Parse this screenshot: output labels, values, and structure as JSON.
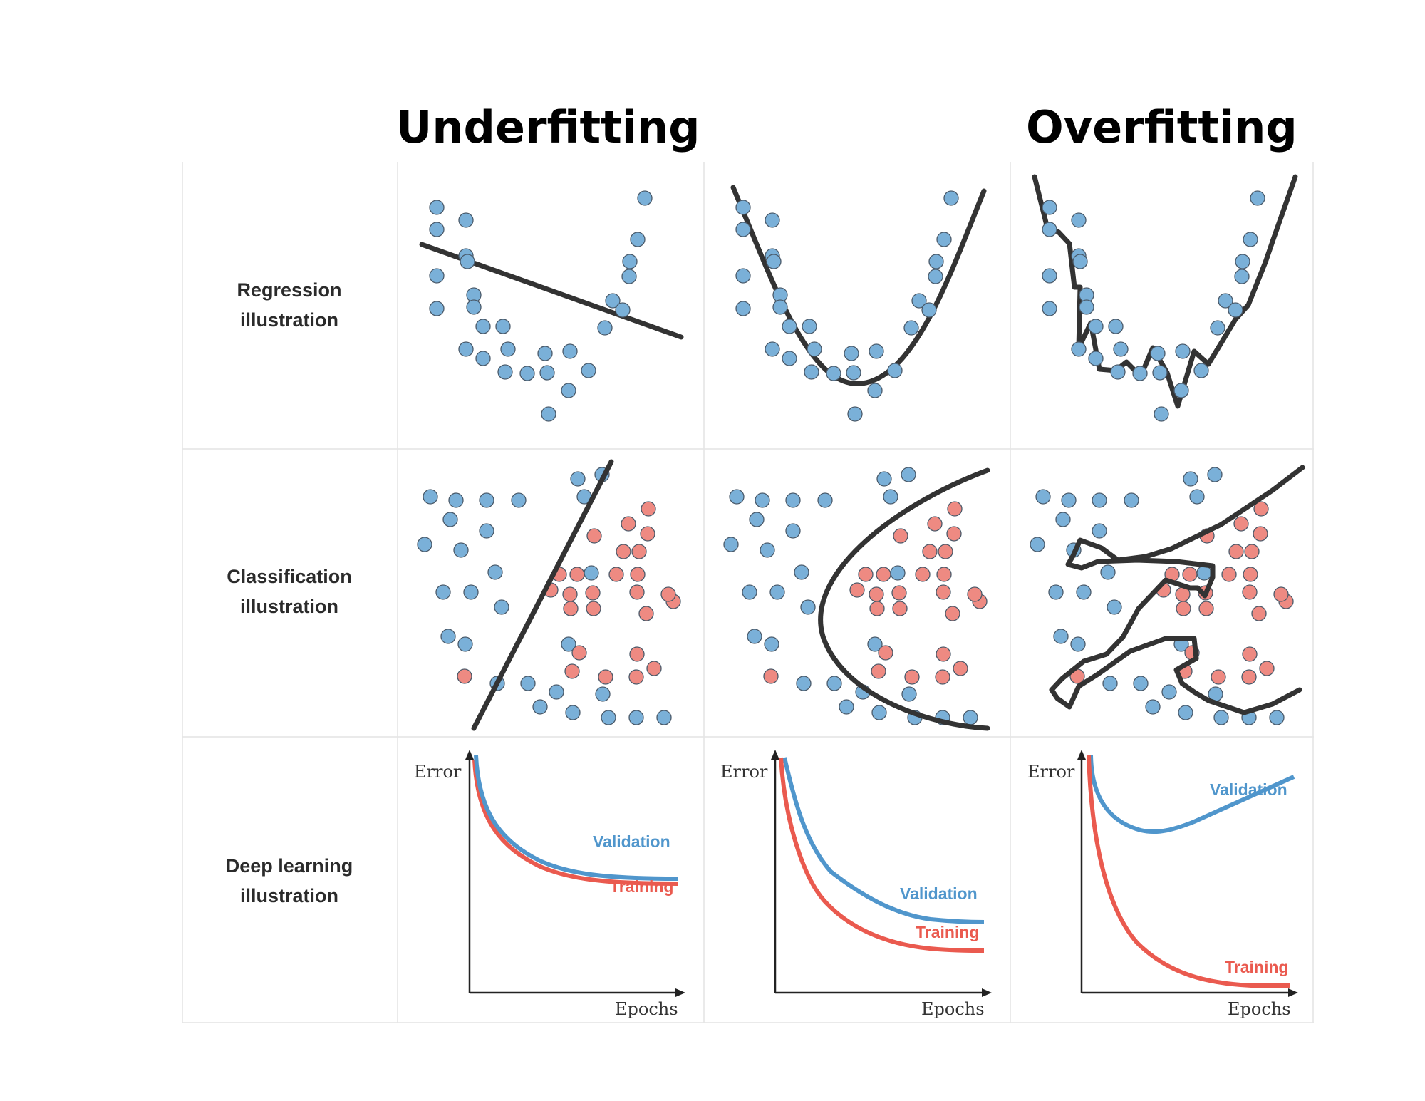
{
  "headings": {
    "underfitting": "Underfitting",
    "overfitting": "Overfitting"
  },
  "rows": {
    "regression": "Regression\nillustration",
    "classification": "Classification\nillustration",
    "deep_learning": "Deep learning\nillustration"
  },
  "axes": {
    "y_label": "Error",
    "x_label": "Epochs"
  },
  "curves": {
    "validation": "Validation",
    "training": "Training"
  },
  "colors": {
    "blue_point": "#7ab0d8",
    "red_point": "#ee8a82",
    "fit_line": "#333333",
    "validation_curve": "#5096cc",
    "training_curve": "#ea5a4f",
    "grid_border": "#e4e4e4"
  }
}
